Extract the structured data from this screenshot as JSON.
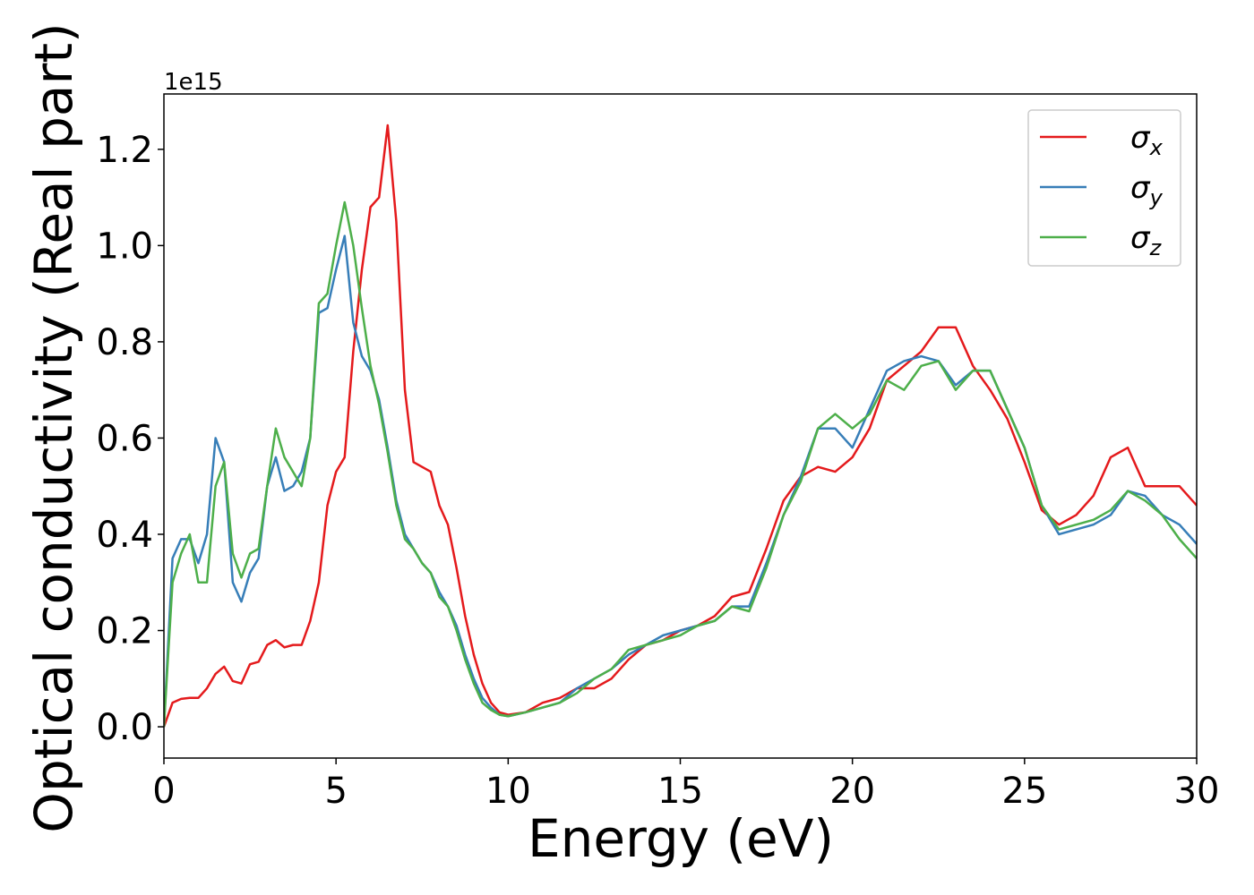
{
  "chart_data": {
    "type": "line",
    "xlabel": "Energy (eV)",
    "ylabel": "Optical conductivity (Real part)",
    "y_offset_label": "1e15",
    "x": [
      0,
      0.25,
      0.5,
      0.75,
      1,
      1.25,
      1.5,
      1.75,
      2,
      2.25,
      2.5,
      2.75,
      3,
      3.25,
      3.5,
      3.75,
      4,
      4.25,
      4.5,
      4.75,
      5,
      5.25,
      5.5,
      5.75,
      6,
      6.25,
      6.5,
      6.75,
      7,
      7.25,
      7.5,
      7.75,
      8,
      8.25,
      8.5,
      8.75,
      9,
      9.25,
      9.5,
      9.75,
      10,
      10.5,
      11,
      11.5,
      12,
      12.5,
      13,
      13.5,
      14,
      14.5,
      15,
      15.5,
      16,
      16.5,
      17,
      17.5,
      18,
      18.5,
      19,
      19.5,
      20,
      20.5,
      21,
      21.5,
      22,
      22.5,
      23,
      23.5,
      24,
      24.5,
      25,
      25.5,
      26,
      26.5,
      27,
      27.5,
      28,
      28.5,
      29,
      29.5,
      30
    ],
    "series": [
      {
        "name": "σx",
        "color": "#e41a1c",
        "values": [
          0,
          0.05,
          0.058,
          0.06,
          0.06,
          0.08,
          0.11,
          0.125,
          0.095,
          0.09,
          0.13,
          0.135,
          0.17,
          0.18,
          0.165,
          0.17,
          0.17,
          0.22,
          0.3,
          0.46,
          0.53,
          0.56,
          0.78,
          0.95,
          1.08,
          1.1,
          1.25,
          1.05,
          0.7,
          0.55,
          0.54,
          0.53,
          0.46,
          0.42,
          0.33,
          0.23,
          0.15,
          0.09,
          0.05,
          0.03,
          0.025,
          0.03,
          0.05,
          0.06,
          0.08,
          0.08,
          0.1,
          0.14,
          0.17,
          0.18,
          0.2,
          0.21,
          0.23,
          0.27,
          0.28,
          0.37,
          0.47,
          0.52,
          0.54,
          0.53,
          0.56,
          0.62,
          0.72,
          0.75,
          0.78,
          0.83,
          0.83,
          0.75,
          0.7,
          0.64,
          0.55,
          0.45,
          0.42,
          0.44,
          0.48,
          0.56,
          0.58,
          0.5,
          0.5,
          0.5,
          0.46
        ]
      },
      {
        "name": "σy",
        "color": "#377eb8",
        "values": [
          0,
          0.35,
          0.39,
          0.39,
          0.34,
          0.4,
          0.6,
          0.55,
          0.3,
          0.26,
          0.32,
          0.35,
          0.5,
          0.56,
          0.49,
          0.5,
          0.53,
          0.6,
          0.86,
          0.87,
          0.95,
          1.02,
          0.84,
          0.77,
          0.74,
          0.68,
          0.58,
          0.47,
          0.4,
          0.37,
          0.34,
          0.32,
          0.28,
          0.25,
          0.21,
          0.15,
          0.1,
          0.06,
          0.04,
          0.025,
          0.022,
          0.03,
          0.04,
          0.05,
          0.08,
          0.1,
          0.12,
          0.15,
          0.17,
          0.19,
          0.2,
          0.21,
          0.22,
          0.25,
          0.25,
          0.34,
          0.44,
          0.52,
          0.62,
          0.62,
          0.58,
          0.66,
          0.74,
          0.76,
          0.77,
          0.76,
          0.71,
          0.74,
          0.74,
          0.66,
          0.58,
          0.46,
          0.4,
          0.41,
          0.42,
          0.44,
          0.49,
          0.48,
          0.44,
          0.42,
          0.38
        ]
      },
      {
        "name": "σz",
        "color": "#4daf4a",
        "values": [
          0,
          0.3,
          0.36,
          0.4,
          0.3,
          0.3,
          0.5,
          0.55,
          0.36,
          0.31,
          0.36,
          0.37,
          0.5,
          0.62,
          0.56,
          0.53,
          0.5,
          0.6,
          0.88,
          0.9,
          1.0,
          1.09,
          1.0,
          0.87,
          0.75,
          0.67,
          0.57,
          0.46,
          0.39,
          0.37,
          0.34,
          0.32,
          0.27,
          0.25,
          0.2,
          0.14,
          0.09,
          0.05,
          0.035,
          0.025,
          0.022,
          0.03,
          0.04,
          0.05,
          0.07,
          0.1,
          0.12,
          0.16,
          0.17,
          0.18,
          0.19,
          0.21,
          0.22,
          0.25,
          0.24,
          0.33,
          0.44,
          0.51,
          0.62,
          0.65,
          0.62,
          0.65,
          0.72,
          0.7,
          0.75,
          0.76,
          0.7,
          0.74,
          0.74,
          0.66,
          0.58,
          0.46,
          0.41,
          0.42,
          0.43,
          0.45,
          0.49,
          0.47,
          0.44,
          0.39,
          0.35
        ]
      }
    ],
    "xlim": [
      0,
      30
    ],
    "xticks": [
      0,
      5,
      10,
      15,
      20,
      25,
      30
    ],
    "ylim": [
      -0.065,
      1.315
    ],
    "yticks": [
      {
        "value": 0,
        "label": "0.0"
      },
      0.2,
      0.4,
      0.6,
      0.8,
      {
        "value": 1,
        "label": "1.0"
      },
      1.2
    ],
    "grid": false,
    "legend": "upper right"
  }
}
